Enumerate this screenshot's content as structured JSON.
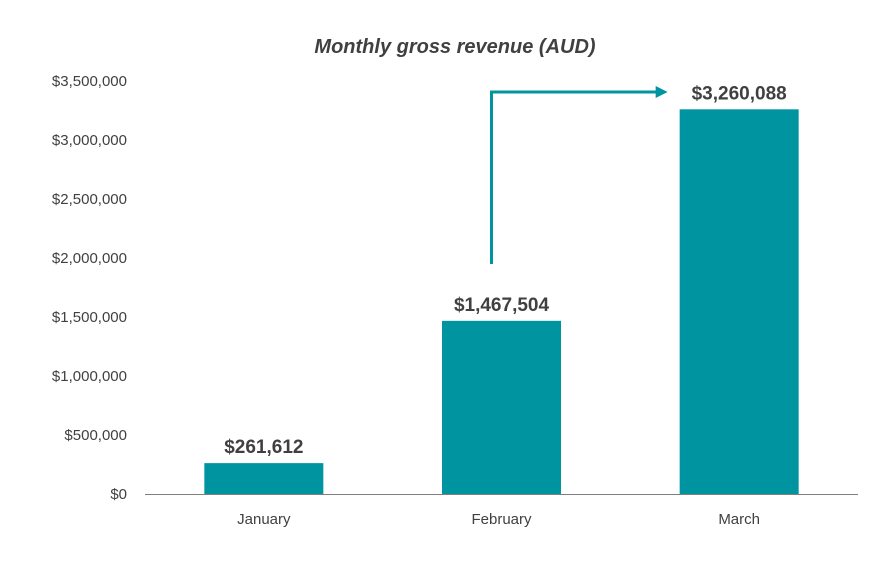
{
  "chart_data": {
    "type": "bar",
    "title": "Monthly gross revenue (AUD)",
    "categories": [
      "January",
      "February",
      "March"
    ],
    "values": [
      261612,
      1467504,
      3260088
    ],
    "data_labels": [
      "$261,612",
      "$1,467,504",
      "$3,260,088"
    ],
    "ylim": [
      0,
      3500000
    ],
    "yticks": [
      0,
      500000,
      1000000,
      1500000,
      2000000,
      2500000,
      3000000,
      3500000
    ],
    "ytick_labels": [
      "$0",
      "$500,000",
      "$1,000,000",
      "$1,500,000",
      "$2,000,000",
      "$2,500,000",
      "$3,000,000",
      "$3,500,000"
    ],
    "xlabel": "",
    "ylabel": "",
    "grid": false,
    "legend": "none",
    "annotation": {
      "type": "arrow",
      "from_category": "February",
      "to_category": "March"
    },
    "colors": {
      "bar": "#0094A0",
      "arrow": "#0094A0",
      "axis": "#7F7F7F",
      "text": "#404040"
    }
  }
}
